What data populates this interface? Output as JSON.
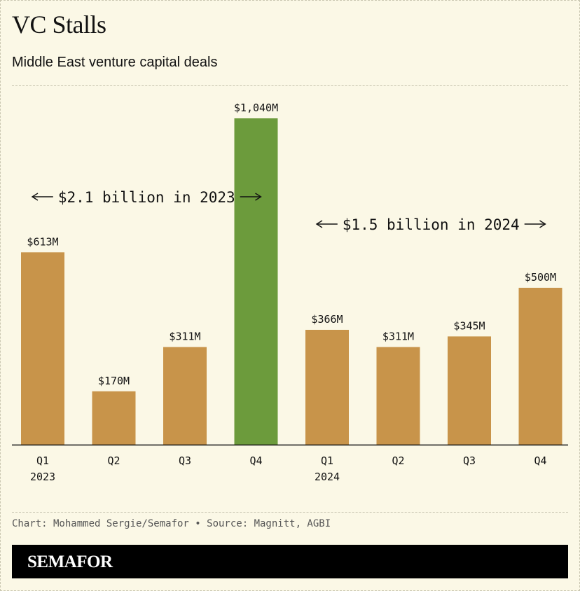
{
  "title": "VC Stalls",
  "subtitle": "Middle East venture capital deals",
  "credit": "Chart: Mohammed Sergie/Semafor • Source: Magnitt, AGBI",
  "brand": "SEMAFOR",
  "colors": {
    "background": "#fbf8e6",
    "bar_default": "#c8944a",
    "bar_highlight": "#6c9b3c",
    "text": "#121212",
    "axis": "#121212"
  },
  "chart_data": {
    "type": "bar",
    "categories": [
      [
        "Q1",
        "2023"
      ],
      [
        "Q2"
      ],
      [
        "Q3"
      ],
      [
        "Q4"
      ],
      [
        "Q1",
        "2024"
      ],
      [
        "Q2"
      ],
      [
        "Q3"
      ],
      [
        "Q4"
      ]
    ],
    "values": [
      613,
      170,
      311,
      1040,
      366,
      311,
      345,
      500
    ],
    "value_labels": [
      "$613M",
      "$170M",
      "$311M",
      "$1,040M",
      "$366M",
      "$311M",
      "$345M",
      "$500M"
    ],
    "unit": "$M",
    "highlight_index": 3,
    "ylim": [
      0,
      1040
    ],
    "grid": false,
    "annotations": [
      {
        "text": "$2.1 billion in 2023",
        "from_index": 0,
        "to_index": 3
      },
      {
        "text": "$1.5 billion in 2024",
        "from_index": 4,
        "to_index": 7
      }
    ]
  }
}
